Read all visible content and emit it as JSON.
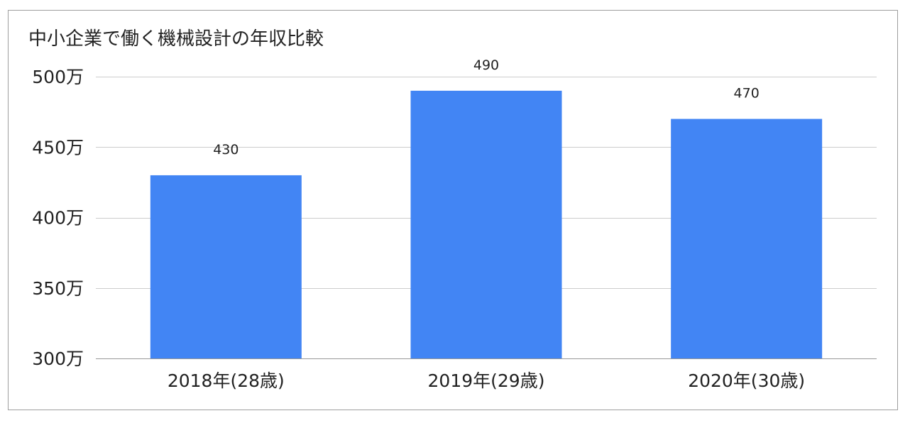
{
  "chart_data": {
    "type": "bar",
    "title": "中小企業で働く機械設計の年収比較",
    "xlabel": "",
    "ylabel": "",
    "categories": [
      "2018年(28歳)",
      "2019年(29歳)",
      "2020年(30歳)"
    ],
    "values": [
      430,
      490,
      470
    ],
    "data_labels": [
      "430",
      "490",
      "470"
    ],
    "ylim": [
      300,
      500
    ],
    "yticks": [
      300,
      350,
      400,
      450,
      500
    ],
    "ytick_labels": [
      "300万",
      "350万",
      "400万",
      "450万",
      "500万"
    ],
    "grid": true,
    "legend": "none",
    "bar_color": "#4285f4",
    "grid_color": "#cccccc",
    "baseline_color": "#999999"
  }
}
